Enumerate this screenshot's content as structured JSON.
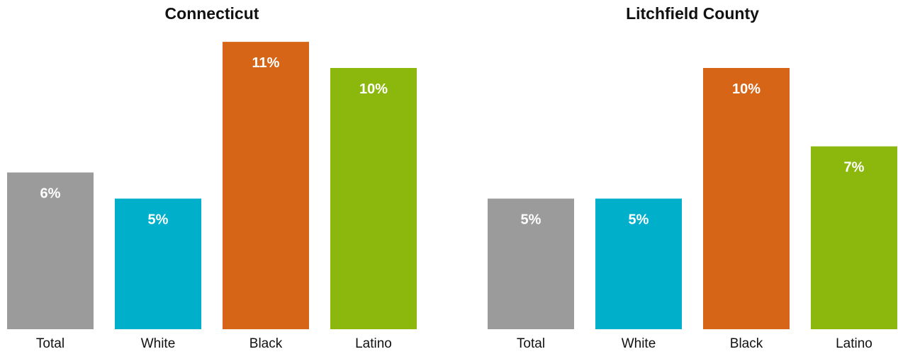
{
  "chart_data": [
    {
      "type": "bar",
      "title": "Connecticut",
      "categories": [
        "Total",
        "White",
        "Black",
        "Latino"
      ],
      "values": [
        6,
        5,
        11,
        10
      ],
      "value_labels": [
        "6%",
        "5%",
        "11%",
        "10%"
      ],
      "unit": "%",
      "xlabel": "",
      "ylabel": "",
      "ylim": [
        0,
        11
      ],
      "grid": false,
      "colors": [
        "#9b9b9b",
        "#00b0ca",
        "#d66518",
        "#8cb80e"
      ]
    },
    {
      "type": "bar",
      "title": "Litchfield County",
      "categories": [
        "Total",
        "White",
        "Black",
        "Latino"
      ],
      "values": [
        5,
        5,
        10,
        7
      ],
      "value_labels": [
        "5%",
        "5%",
        "10%",
        "7%"
      ],
      "unit": "%",
      "xlabel": "",
      "ylabel": "",
      "ylim": [
        0,
        11
      ],
      "grid": false,
      "colors": [
        "#9b9b9b",
        "#00b0ca",
        "#d66518",
        "#8cb80e"
      ]
    }
  ]
}
